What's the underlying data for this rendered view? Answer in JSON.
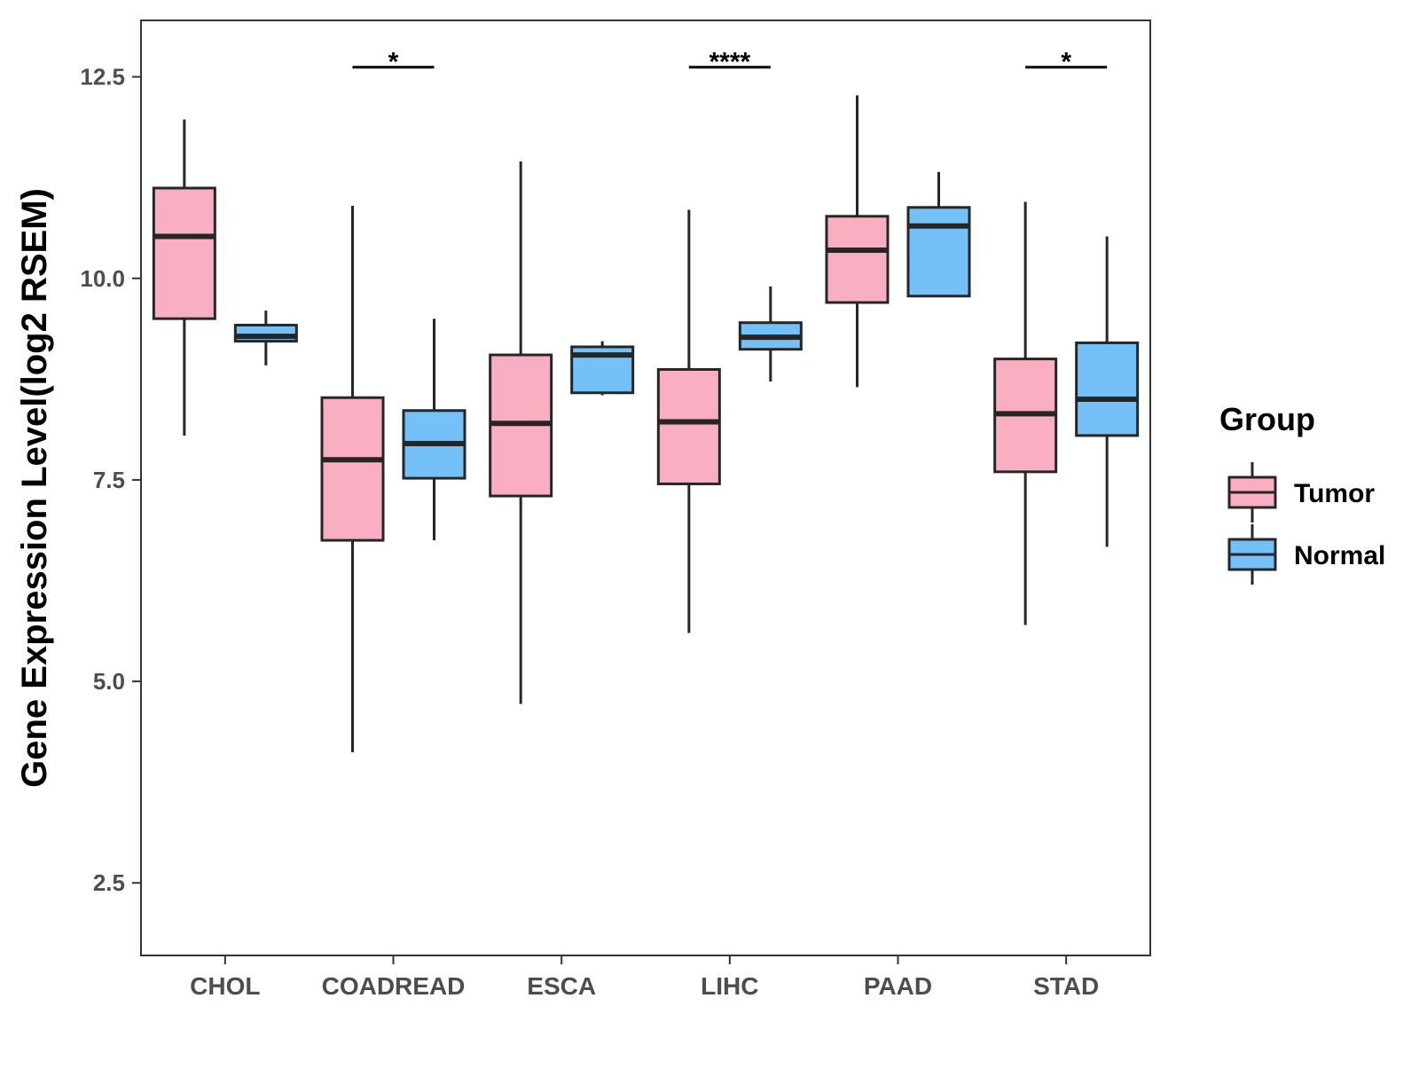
{
  "chart_data": {
    "type": "boxplot",
    "title": "",
    "xlabel": "",
    "ylabel": "Gene Expression Level(log2 RSEM)",
    "ylim": [
      1.6,
      13.2
    ],
    "yticks": [
      2.5,
      5.0,
      7.5,
      10.0,
      12.5
    ],
    "ytick_labels": [
      "2.5",
      "5.0",
      "7.5",
      "10.0",
      "12.5"
    ],
    "categories": [
      "CHOL",
      "COADREAD",
      "ESCA",
      "LIHC",
      "PAAD",
      "STAD"
    ],
    "legend": {
      "title": "Group",
      "position": "right",
      "items": [
        {
          "name": "Tumor",
          "color": "#F9AFC1"
        },
        {
          "name": "Normal",
          "color": "#74C0F9"
        }
      ]
    },
    "series": [
      {
        "name": "Tumor",
        "color": "#F9AFC1",
        "boxes": [
          {
            "category": "CHOL",
            "min": 8.05,
            "q1": 9.5,
            "median": 10.52,
            "q3": 11.12,
            "max": 11.97
          },
          {
            "category": "COADREAD",
            "min": 4.12,
            "q1": 6.75,
            "median": 7.75,
            "q3": 8.52,
            "max": 10.9
          },
          {
            "category": "ESCA",
            "min": 4.72,
            "q1": 7.3,
            "median": 8.2,
            "q3": 9.05,
            "max": 11.45
          },
          {
            "category": "LIHC",
            "min": 5.6,
            "q1": 7.45,
            "median": 8.22,
            "q3": 8.87,
            "max": 10.85
          },
          {
            "category": "PAAD",
            "min": 8.65,
            "q1": 9.7,
            "median": 10.35,
            "q3": 10.77,
            "max": 12.27
          },
          {
            "category": "STAD",
            "min": 5.7,
            "q1": 7.6,
            "median": 8.32,
            "q3": 9.0,
            "max": 10.95
          }
        ]
      },
      {
        "name": "Normal",
        "color": "#74C0F9",
        "boxes": [
          {
            "category": "CHOL",
            "min": 8.92,
            "q1": 9.22,
            "median": 9.28,
            "q3": 9.42,
            "max": 9.6
          },
          {
            "category": "COADREAD",
            "min": 6.75,
            "q1": 7.52,
            "median": 7.95,
            "q3": 8.36,
            "max": 9.5
          },
          {
            "category": "ESCA",
            "min": 8.55,
            "q1": 8.58,
            "median": 9.05,
            "q3": 9.15,
            "max": 9.22
          },
          {
            "category": "LIHC",
            "min": 8.72,
            "q1": 9.12,
            "median": 9.27,
            "q3": 9.45,
            "max": 9.9
          },
          {
            "category": "PAAD",
            "min": 9.78,
            "q1": 9.78,
            "median": 10.65,
            "q3": 10.88,
            "max": 11.32
          },
          {
            "category": "STAD",
            "min": 6.67,
            "q1": 8.05,
            "median": 8.5,
            "q3": 9.2,
            "max": 10.52
          }
        ]
      }
    ],
    "significance": [
      {
        "category": "COADREAD",
        "label": "*",
        "y": 12.62
      },
      {
        "category": "LIHC",
        "label": "****",
        "y": 12.62
      },
      {
        "category": "STAD",
        "label": "*",
        "y": 12.62
      }
    ]
  }
}
